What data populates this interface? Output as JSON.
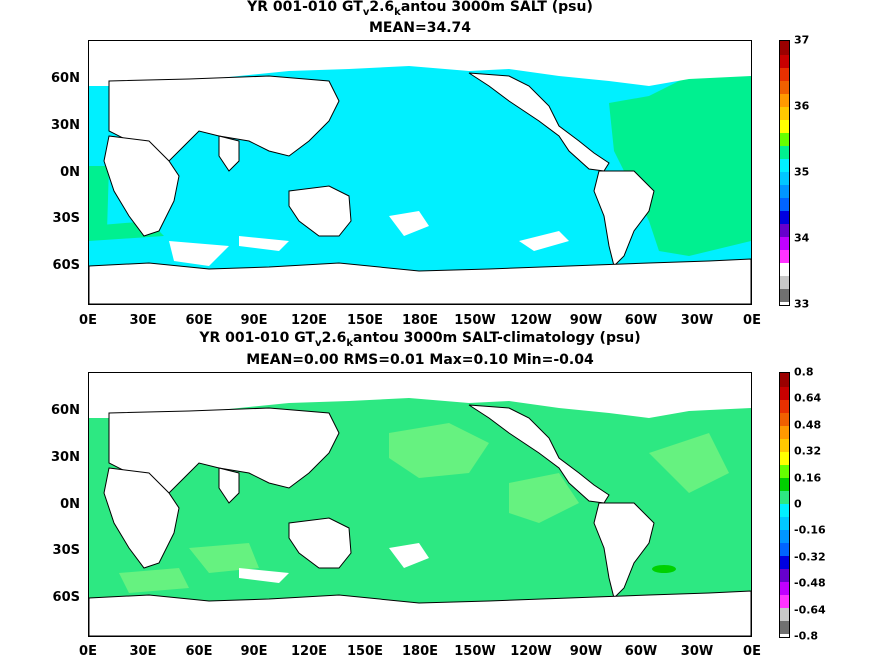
{
  "top": {
    "title_pre": "YR 001-010 GT",
    "title_sub1": "v",
    "title_mid": "2.6",
    "title_sub2": "k",
    "title_post": "antou 3000m SALT (psu)",
    "subtitle": "MEAN=34.74",
    "colorbar_labels": [
      "37",
      "36",
      "35",
      "34",
      "33"
    ]
  },
  "bottom": {
    "title_pre": "YR 001-010 GT",
    "title_sub1": "v",
    "title_mid": "2.6",
    "title_sub2": "k",
    "title_post": "antou 3000m SALT-climatology (psu)",
    "subtitle": "MEAN=0.00   RMS=0.01   Max=0.10   Min=-0.04",
    "colorbar_labels": [
      "0.8",
      "0.64",
      "0.48",
      "0.32",
      "0.16",
      "0",
      "-0.16",
      "-0.32",
      "-0.48",
      "-0.64",
      "-0.8"
    ]
  },
  "axes": {
    "lat_labels": [
      "60N",
      "30N",
      "0N",
      "30S",
      "60S"
    ],
    "lon_labels": [
      "0E",
      "30E",
      "60E",
      "90E",
      "120E",
      "150E",
      "180E",
      "150W",
      "120W",
      "90W",
      "60W",
      "30W",
      "0E"
    ]
  },
  "colors": {
    "salt_main": "#00f0ff",
    "salt_atlantic": "#00f090",
    "diff_main": "#2de882",
    "diff_light": "#66f280",
    "land": "#ffffff",
    "coast": "#000000"
  }
}
